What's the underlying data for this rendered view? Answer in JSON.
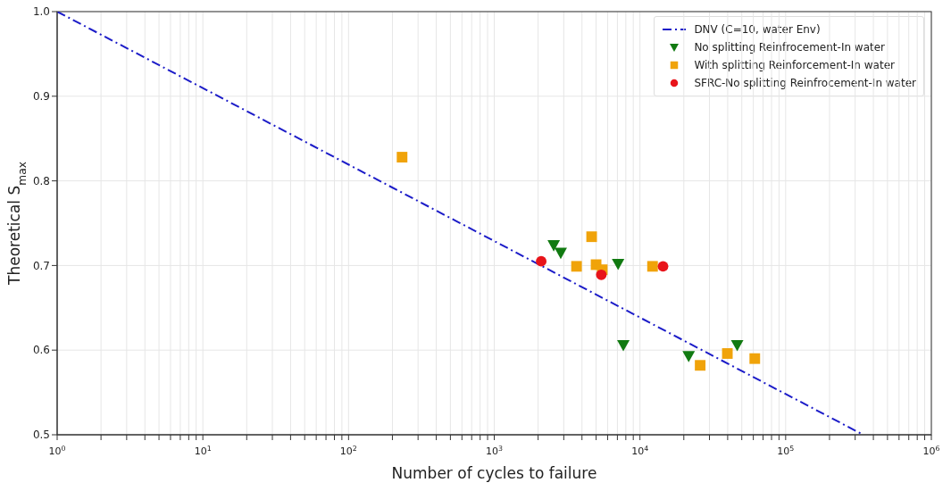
{
  "chart_data": {
    "type": "scatter",
    "xlabel": "Number of cycles to failure",
    "ylabel": "Theoretical S$_{max}$",
    "log": "x",
    "grid": true,
    "legend": "top right",
    "xlim": [
      1,
      1000000
    ],
    "xticks": [
      {
        "value": 1,
        "label": "10$^{0}$"
      },
      {
        "value": 2,
        "label": null
      },
      {
        "value": 3,
        "label": null
      },
      {
        "value": 4,
        "label": null
      },
      {
        "value": 5,
        "label": null
      },
      {
        "value": 6,
        "label": null
      },
      {
        "value": 7,
        "label": null
      },
      {
        "value": 8,
        "label": null
      },
      {
        "value": 9,
        "label": null
      },
      {
        "value": 10,
        "label": "10$^{1}$"
      },
      {
        "value": 20,
        "label": null
      },
      {
        "value": 30,
        "label": null
      },
      {
        "value": 40,
        "label": null
      },
      {
        "value": 50,
        "label": null
      },
      {
        "value": 60,
        "label": null
      },
      {
        "value": 70,
        "label": null
      },
      {
        "value": 80,
        "label": null
      },
      {
        "value": 90,
        "label": null
      },
      {
        "value": 100,
        "label": "10$^{2}$"
      },
      {
        "value": 200,
        "label": null
      },
      {
        "value": 300,
        "label": null
      },
      {
        "value": 400,
        "label": null
      },
      {
        "value": 500,
        "label": null
      },
      {
        "value": 600,
        "label": null
      },
      {
        "value": 700,
        "label": null
      },
      {
        "value": 800,
        "label": null
      },
      {
        "value": 900,
        "label": null
      },
      {
        "value": 1000,
        "label": "10$^{3}$"
      },
      {
        "value": 2000,
        "label": null
      },
      {
        "value": 3000,
        "label": null
      },
      {
        "value": 4000,
        "label": null
      },
      {
        "value": 5000,
        "label": null
      },
      {
        "value": 6000,
        "label": null
      },
      {
        "value": 7000,
        "label": null
      },
      {
        "value": 8000,
        "label": null
      },
      {
        "value": 9000,
        "label": null
      },
      {
        "value": 10000,
        "label": "10$^{4}$"
      },
      {
        "value": 20000,
        "label": null
      },
      {
        "value": 30000,
        "label": null
      },
      {
        "value": 40000,
        "label": null
      },
      {
        "value": 50000,
        "label": null
      },
      {
        "value": 60000,
        "label": null
      },
      {
        "value": 70000,
        "label": null
      },
      {
        "value": 80000,
        "label": null
      },
      {
        "value": 90000,
        "label": null
      },
      {
        "value": 100000,
        "label": "10$^{5}$"
      },
      {
        "value": 200000,
        "label": null
      },
      {
        "value": 300000,
        "label": null
      },
      {
        "value": 400000,
        "label": null
      },
      {
        "value": 500000,
        "label": null
      },
      {
        "value": 600000,
        "label": null
      },
      {
        "value": 700000,
        "label": null
      },
      {
        "value": 800000,
        "label": null
      },
      {
        "value": 900000,
        "label": null
      },
      {
        "value": 1000000,
        "label": "10$^{6}$"
      }
    ],
    "ylim": [
      0.5,
      1.0
    ],
    "yticks": [
      0.5,
      0.6,
      0.7,
      0.8,
      0.9,
      {
        "value": 1.0,
        "label": "1.0"
      }
    ],
    "series": [
      {
        "name": "DNV (C=10, water Env)",
        "type": "line",
        "line_style": "dashdot",
        "marker": "none",
        "color": "#1c1cc8",
        "x": [
          1,
          341000
        ],
        "values": [
          1.0,
          0.5
        ]
      },
      {
        "name": "No splitting Reinfrocement-In water",
        "marker": "triangle",
        "color": "#117a11",
        "x": [
          2560,
          2860,
          7080,
          7690,
          21600,
          46500
        ],
        "values": [
          0.724,
          0.715,
          0.702,
          0.606,
          0.593,
          0.606
        ]
      },
      {
        "name": "With splitting Reinforcement-In water",
        "marker": "square",
        "color": "#f0a30a",
        "x": [
          233,
          3670,
          4660,
          5000,
          5510,
          12200,
          25900,
          39800,
          61400
        ],
        "values": [
          0.828,
          0.699,
          0.734,
          0.701,
          0.695,
          0.699,
          0.582,
          0.596,
          0.59
        ]
      },
      {
        "name": "SFRC-No splitting Reinfrocement-In water",
        "marker": "circle",
        "color": "#e8141a",
        "x": [
          2100,
          5430,
          14400
        ],
        "values": [
          0.705,
          0.689,
          0.699
        ]
      }
    ]
  }
}
